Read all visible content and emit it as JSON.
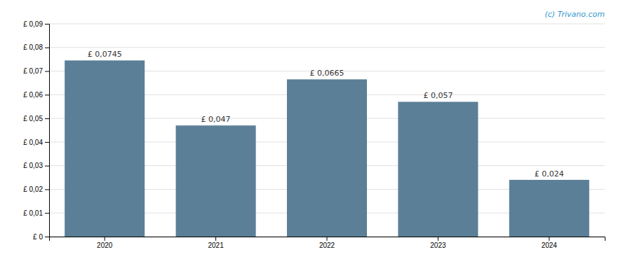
{
  "chart_data": {
    "type": "bar",
    "categories": [
      "2020",
      "2021",
      "2022",
      "2023",
      "2024"
    ],
    "values": [
      0.0745,
      0.047,
      0.0665,
      0.057,
      0.024
    ],
    "value_labels": [
      "£ 0,0745",
      "£ 0,047",
      "£ 0,0665",
      "£ 0,057",
      "£ 0,024"
    ],
    "data_labels": true,
    "color": "#5b7f96",
    "ylim": [
      0,
      0.09
    ],
    "yticks": [
      {
        "value": 0,
        "label": "£ 0"
      },
      {
        "value": 0.01,
        "label": "£ 0,01"
      },
      {
        "value": 0.02,
        "label": "£ 0,02"
      },
      {
        "value": 0.03,
        "label": "£ 0,03"
      },
      {
        "value": 0.04,
        "label": "£ 0,04"
      },
      {
        "value": 0.05,
        "label": "£ 0,05"
      },
      {
        "value": 0.06,
        "label": "£ 0,06"
      },
      {
        "value": 0.07,
        "label": "£ 0,07"
      },
      {
        "value": 0.08,
        "label": "£ 0,08"
      },
      {
        "value": 0.09,
        "label": "£ 0,09"
      }
    ],
    "grid": true,
    "annotations": [
      "(c) Trivano.com"
    ]
  }
}
